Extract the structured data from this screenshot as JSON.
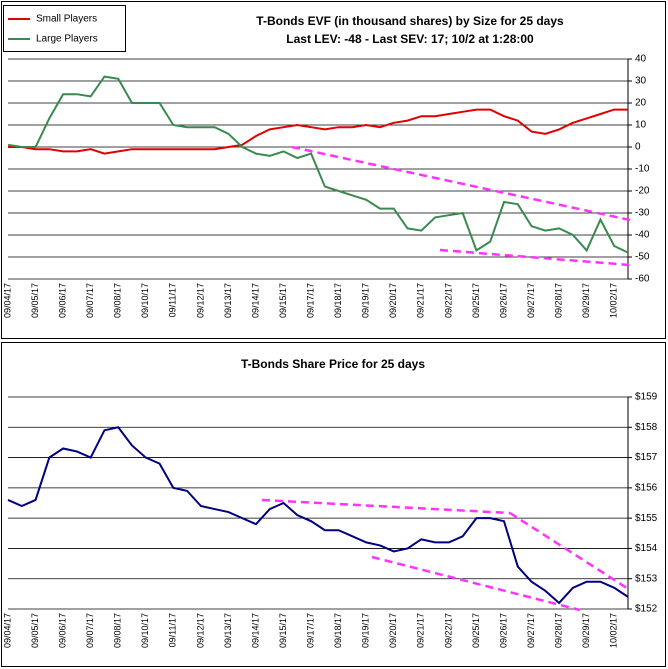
{
  "chart_data": [
    {
      "type": "line",
      "title": "T-Bonds EVF (in thousand shares) by Size for 25 days",
      "subtitle": "Last LEV: -48 - Last SEV: 17; 10/2 at 1:28:00",
      "categories": [
        "09/04/17",
        null,
        "09/05/17",
        null,
        "09/06/17",
        null,
        "09/07/17",
        null,
        "09/08/17",
        null,
        "09/10/17",
        null,
        "09/11/17",
        null,
        "09/12/17",
        null,
        "09/13/17",
        null,
        "09/14/17",
        null,
        "09/15/17",
        null,
        "09/17/17",
        null,
        "09/18/17",
        null,
        "09/19/17",
        null,
        "09/20/17",
        null,
        "09/21/17",
        null,
        "09/22/17",
        null,
        "09/25/17",
        null,
        "09/26/17",
        null,
        "09/27/17",
        null,
        "09/28/17",
        null,
        "09/29/17",
        null,
        "10/02/17",
        null
      ],
      "series": [
        {
          "name": "Small Players",
          "color": "#e00000",
          "values": [
            0,
            0,
            -1,
            -1,
            -2,
            -2,
            -1,
            -3,
            -2,
            -1,
            -1,
            -1,
            -1,
            -1,
            -1,
            -1,
            0,
            1,
            5,
            8,
            9,
            10,
            9,
            8,
            9,
            9,
            10,
            9,
            11,
            12,
            14,
            14,
            15,
            16,
            17,
            17,
            14,
            12,
            7,
            6,
            8,
            11,
            13,
            15,
            17,
            17
          ]
        },
        {
          "name": "Large Players",
          "color": "#3a8a50",
          "values": [
            1,
            0,
            0,
            13,
            24,
            24,
            23,
            32,
            31,
            20,
            20,
            20,
            10,
            9,
            9,
            9,
            6,
            0,
            -3,
            -4,
            -2,
            -5,
            -3,
            -18,
            -20,
            -22,
            -24,
            -28,
            -28,
            -37,
            -38,
            -32,
            -31,
            -30,
            -47,
            -43,
            -25,
            -26,
            -36,
            -38,
            -37,
            -40,
            -47,
            -33,
            -45,
            -48
          ]
        }
      ],
      "ylim": [
        -60,
        40
      ],
      "yticks": [
        -60,
        -50,
        -40,
        -30,
        -20,
        -10,
        0,
        10,
        20,
        30,
        40
      ],
      "grid": true,
      "legend": "upper left"
    },
    {
      "type": "line",
      "title": "T-Bonds Share Price for 25 days",
      "categories": [
        "09/04/17",
        null,
        "09/05/17",
        null,
        "09/06/17",
        null,
        "09/07/17",
        null,
        "09/08/17",
        null,
        "09/10/17",
        null,
        "09/11/17",
        null,
        "09/12/17",
        null,
        "09/13/17",
        null,
        "09/14/17",
        null,
        "09/15/17",
        null,
        "09/17/17",
        null,
        "09/18/17",
        null,
        "09/19/17",
        null,
        "09/20/17",
        null,
        "09/21/17",
        null,
        "09/22/17",
        null,
        "09/25/17",
        null,
        "09/26/17",
        null,
        "09/27/17",
        null,
        "09/28/17",
        null,
        "09/29/17",
        null,
        "10/02/17",
        null
      ],
      "color": "#000080",
      "values": [
        155.6,
        155.4,
        155.6,
        157.0,
        157.3,
        157.2,
        157.0,
        157.9,
        158.0,
        157.4,
        157.0,
        156.8,
        156.0,
        155.9,
        155.4,
        155.3,
        155.2,
        155.0,
        154.8,
        155.3,
        155.5,
        155.1,
        154.9,
        154.6,
        154.6,
        154.4,
        154.2,
        154.1,
        153.9,
        154.0,
        154.3,
        154.2,
        154.2,
        154.4,
        155.0,
        155.0,
        154.9,
        153.4,
        152.9,
        152.6,
        152.2,
        152.7,
        152.9,
        152.9,
        152.7,
        152.4
      ],
      "ylim": [
        152,
        159
      ],
      "yticks": [
        {
          "value": 152,
          "label": "$152"
        },
        {
          "value": 153,
          "label": "$153"
        },
        {
          "value": 154,
          "label": "$154"
        },
        {
          "value": 155,
          "label": "$155"
        },
        {
          "value": 156,
          "label": "$156"
        },
        {
          "value": 157,
          "label": "$157"
        },
        {
          "value": 158,
          "label": "$158"
        },
        {
          "value": 159,
          "label": "$159"
        }
      ],
      "grid": true
    }
  ]
}
